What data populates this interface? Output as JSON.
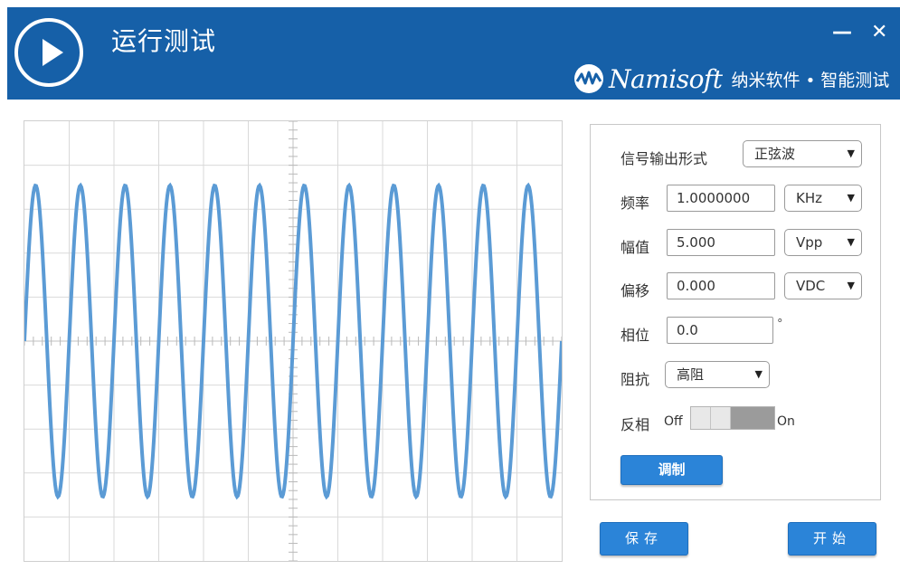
{
  "window": {
    "title": "运行测试",
    "minimize_label": "—",
    "close_label": "✕"
  },
  "brand": {
    "logo_text": "Namisoft",
    "company": "纳米软件",
    "separator": "•",
    "product": "智能测试",
    "icon": "namisoft-wave-logo"
  },
  "colors": {
    "header_bg": "#1660a8",
    "waveform": "#5b9bd5",
    "button": "#2b84d8"
  },
  "controls": {
    "signal_output": {
      "label": "信号输出形式",
      "value": "正弦波"
    },
    "frequency": {
      "label": "频率",
      "value": "1.0000000",
      "unit": "KHz"
    },
    "amplitude": {
      "label": "幅值",
      "value": "5.000",
      "unit": "Vpp"
    },
    "offset": {
      "label": "偏移",
      "value": "0.000",
      "unit": "VDC"
    },
    "phase": {
      "label": "相位",
      "value": "0.0",
      "unit": "°"
    },
    "impedance": {
      "label": "阻抗",
      "value": "高阻"
    },
    "invert": {
      "label": "反相",
      "off_label": "Off",
      "on_label": "On",
      "state": "off"
    },
    "modulate_button": "调制"
  },
  "actions": {
    "save": "保存",
    "start": "开始"
  },
  "icons": {
    "play": "play-icon",
    "dropdown": "▼"
  }
}
